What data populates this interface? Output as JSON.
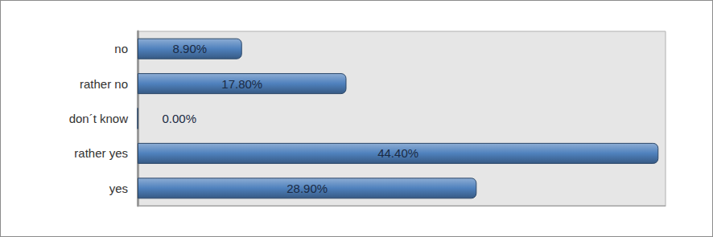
{
  "chart_data": {
    "type": "bar",
    "orientation": "horizontal",
    "categories": [
      "yes",
      "rather yes",
      "don´t know",
      "rather no",
      "no"
    ],
    "values": [
      28.9,
      44.4,
      0,
      17.8,
      8.9
    ],
    "value_labels": [
      "28.90%",
      "44.40%",
      "0.00%",
      "17.80%",
      "8.90%"
    ],
    "color": "#4f81bd",
    "xlim": [
      0,
      45
    ],
    "data_labels": true,
    "tick_labels": "y",
    "grid": false
  }
}
